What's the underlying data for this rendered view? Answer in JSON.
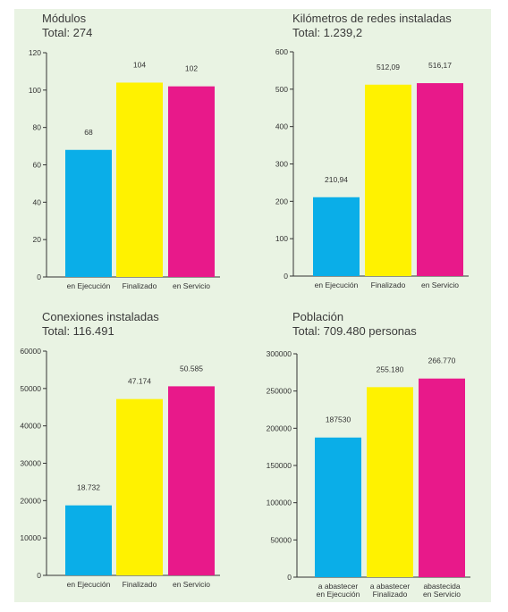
{
  "colors": {
    "en_ejecucion": "#0aaee8",
    "finalizado": "#fff200",
    "en_servicio": "#e8198a",
    "background": "#e9f3e3",
    "axis": "#333333"
  },
  "chart_data": [
    {
      "type": "bar",
      "title": "Módulos",
      "subtitle": "Total: 274",
      "categories": [
        "en Ejecución",
        "Finalizado",
        "en Servicio"
      ],
      "values": [
        68,
        104,
        102
      ],
      "data_labels": [
        "68",
        "104",
        "102"
      ],
      "ylim": [
        0,
        120
      ],
      "yticks": [
        0,
        20,
        40,
        60,
        80,
        100,
        120
      ],
      "ytick_labels": [
        "0",
        "20",
        "40",
        "60",
        "80",
        "100",
        "120"
      ],
      "grid": false
    },
    {
      "type": "bar",
      "title": "Kilómetros de redes instaladas",
      "subtitle": "Total: 1.239,2",
      "categories": [
        "en Ejecución",
        "Finalizado",
        "en Servicio"
      ],
      "values": [
        210.94,
        512.09,
        516.17
      ],
      "data_labels": [
        "210,94",
        "512,09",
        "516,17"
      ],
      "ylim": [
        0,
        600
      ],
      "yticks": [
        0,
        100,
        200,
        300,
        400,
        500,
        600
      ],
      "ytick_labels": [
        "0",
        "100",
        "200",
        "300",
        "400",
        "500",
        "600"
      ],
      "grid": false
    },
    {
      "type": "bar",
      "title": "Conexiones instaladas",
      "subtitle": "Total: 116.491",
      "categories": [
        "en Ejecución",
        "Finalizado",
        "en Servicio"
      ],
      "values": [
        18732,
        47174,
        50585
      ],
      "data_labels": [
        "18.732",
        "47.174",
        "50.585"
      ],
      "ylim": [
        0,
        60000
      ],
      "yticks": [
        0,
        10000,
        20000,
        30000,
        40000,
        50000,
        60000
      ],
      "ytick_labels": [
        "0",
        "10000",
        "20000",
        "30000",
        "40000",
        "50000",
        "60000"
      ],
      "grid": false
    },
    {
      "type": "bar",
      "title": "Población",
      "subtitle": "Total: 709.480 personas",
      "categories": [
        [
          "a abastecer",
          "en Ejecución"
        ],
        [
          "a abastecer",
          "Finalizado"
        ],
        [
          "abastecida",
          "en Servicio"
        ]
      ],
      "values": [
        187530,
        255180,
        266770
      ],
      "data_labels": [
        "187530",
        "255.180",
        "266.770"
      ],
      "ylim": [
        0,
        300000
      ],
      "yticks": [
        0,
        50000,
        100000,
        150000,
        200000,
        250000,
        300000
      ],
      "ytick_labels": [
        "0",
        "50000",
        "100000",
        "150000",
        "200000",
        "250000",
        "300000"
      ],
      "grid": false
    }
  ]
}
